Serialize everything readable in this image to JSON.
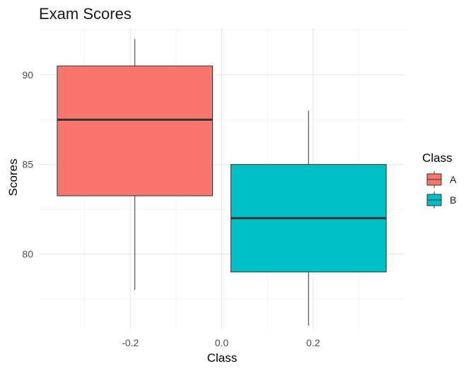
{
  "chart_data": {
    "type": "box",
    "title": "Exam Scores",
    "xlabel": "Class",
    "ylabel": "Scores",
    "xlim": [
      -0.4,
      0.4
    ],
    "ylim": [
      75.8,
      92.6
    ],
    "x_ticks": [
      -0.2,
      0.0,
      0.2
    ],
    "x_tick_labels": [
      "-0.2",
      "0.0",
      "0.2"
    ],
    "y_ticks": [
      80,
      85,
      90
    ],
    "y_tick_labels": [
      "80",
      "85",
      "90"
    ],
    "grid": true,
    "legend": {
      "title": "Class",
      "position": "right"
    },
    "series": [
      {
        "name": "A",
        "color": "#F8766D",
        "x": -0.19,
        "box_halfwidth": 0.17,
        "min": 78,
        "q1": 83.25,
        "median": 87.5,
        "q3": 90.5,
        "max": 92
      },
      {
        "name": "B",
        "color": "#00BFC4",
        "x": 0.19,
        "box_halfwidth": 0.17,
        "min": 76,
        "q1": 79,
        "median": 82,
        "q3": 85,
        "max": 88
      }
    ]
  }
}
